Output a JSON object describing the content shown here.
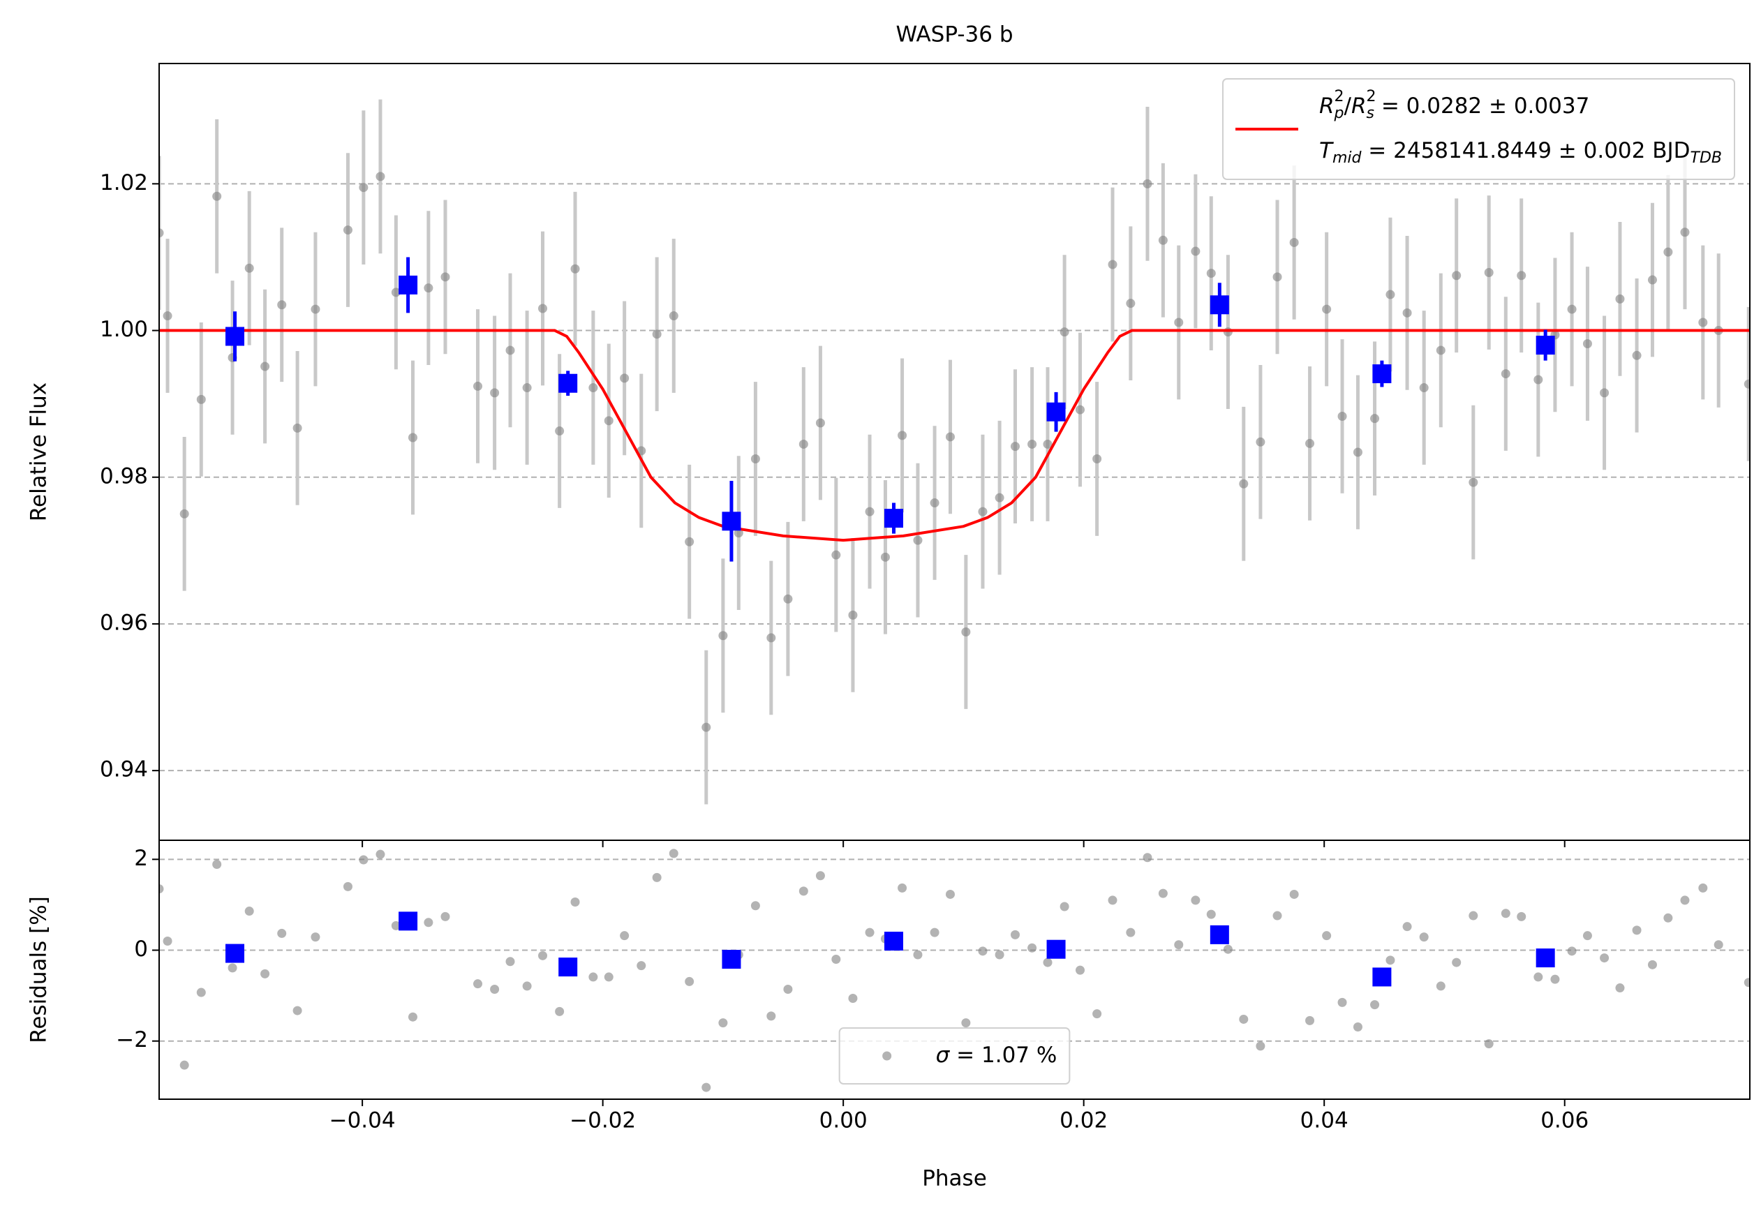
{
  "chart_data": [
    {
      "type": "scatter",
      "title": "WASP-36 b",
      "ylabel": "Relative Flux",
      "xlim": [
        -0.0569,
        0.0754
      ],
      "ylim": [
        0.9305,
        1.0364
      ],
      "yticks": [
        0.94,
        0.96,
        0.98,
        {
          "value": 1,
          "label": "1.00"
        },
        1.02
      ],
      "grid": "y",
      "legend": "upper right",
      "series": [
        {
          "style": "errorbar",
          "color": "#808080",
          "ecolor": "#c8c8c8",
          "yerr": 0.0105,
          "x": [
            -0.0569,
            -0.0562,
            -0.0548,
            -0.0534,
            -0.0521,
            -0.0508,
            -0.0494,
            -0.0481,
            -0.0467,
            -0.0454,
            -0.0439,
            -0.0412,
            -0.0399,
            -0.0385,
            -0.0372,
            -0.0358,
            -0.0345,
            -0.0331,
            -0.0304,
            -0.029,
            -0.0277,
            -0.0263,
            -0.025,
            -0.0236,
            -0.0223,
            -0.0208,
            -0.0195,
            -0.0182,
            -0.0168,
            -0.0155,
            -0.0141,
            -0.0128,
            -0.0114,
            -0.01,
            -0.0087,
            -0.0073,
            -0.006,
            -0.0046,
            -0.0033,
            -0.0019,
            -0.0006,
            0.0008,
            0.0022,
            0.0035,
            0.0049,
            0.0062,
            0.0076,
            0.0089,
            0.0102,
            0.0116,
            0.013,
            0.0143,
            0.0157,
            0.017,
            0.0184,
            0.0197,
            0.0211,
            0.0224,
            0.0239,
            0.0253,
            0.0266,
            0.0279,
            0.0293,
            0.0306,
            0.032,
            0.0333,
            0.0347,
            0.0361,
            0.0375,
            0.0388,
            0.0402,
            0.0415,
            0.0428,
            0.0442,
            0.0455,
            0.0469,
            0.0483,
            0.0497,
            0.051,
            0.0524,
            0.0537,
            0.0551,
            0.0564,
            0.0578,
            0.0592,
            0.0606,
            0.0619,
            0.0633,
            0.0646,
            0.066,
            0.0673,
            0.0686,
            0.07,
            0.0715,
            0.0728,
            0.0753
          ],
          "values": [
            1.0133,
            1.002,
            0.975,
            0.9906,
            1.0183,
            0.9963,
            1.0085,
            0.9951,
            1.0035,
            0.9867,
            1.0029,
            1.0137,
            1.0195,
            1.021,
            1.0052,
            0.9854,
            1.0058,
            1.0073,
            0.9924,
            0.9915,
            0.9973,
            0.9922,
            1.003,
            0.9863,
            1.0084,
            0.9922,
            0.9877,
            0.9935,
            0.9836,
            0.9995,
            1.002,
            0.9712,
            0.9459,
            0.9584,
            0.9724,
            0.9825,
            0.9581,
            0.9634,
            0.9845,
            0.9874,
            0.9694,
            0.9612,
            0.9753,
            0.9691,
            0.9857,
            0.9714,
            0.9765,
            0.9855,
            0.9589,
            0.9753,
            0.9772,
            0.9842,
            0.9845,
            0.9845,
            0.9998,
            0.9892,
            0.9825,
            1.009,
            1.0037,
            1.02,
            1.0123,
            1.0011,
            1.0108,
            1.0078,
            0.9998,
            0.9791,
            0.9848,
            1.0073,
            1.012,
            0.9846,
            1.0029,
            0.9883,
            0.9834,
            0.988,
            1.0049,
            1.0024,
            0.9922,
            0.9973,
            1.0075,
            0.9793,
            1.0079,
            0.9941,
            1.0075,
            0.9933,
            0.9994,
            1.0029,
            0.9982,
            0.9915,
            1.0043,
            0.9966,
            1.0069,
            1.0107,
            1.0134,
            1.0011,
            1.0,
            0.9927
          ]
        },
        {
          "style": "square",
          "color": "#0000ff",
          "x": [
            -0.0506,
            -0.0362,
            -0.0229,
            -0.0093,
            0.0042,
            0.0177,
            0.0313,
            0.0448,
            0.0584
          ],
          "values": [
            0.9992,
            1.0062,
            0.9928,
            0.974,
            0.9744,
            0.9889,
            1.0035,
            0.9941,
            0.998
          ],
          "errors": [
            0.0034,
            0.0038,
            0.0017,
            0.0055,
            0.0021,
            0.0027,
            0.003,
            0.0018,
            0.0021
          ]
        },
        {
          "style": "line",
          "color": "#ff0000",
          "name": [
            [
              {
                "text": "R",
                "italic": true
              },
              {
                "sup": "2",
                "sub": "p"
              },
              {
                "text": "/"
              },
              {
                "text": "R",
                "italic": true
              },
              {
                "sup": "2",
                "sub": "s"
              },
              {
                "text": " = 0.0282 ± 0.0037"
              }
            ],
            [
              {
                "text": "T",
                "italic": true
              },
              {
                "sub": "mid"
              },
              {
                "text": " = 2458141.8449 ± 0.002 BJD"
              },
              {
                "sub": "TDB"
              }
            ]
          ],
          "x": [
            -0.0569,
            -0.024,
            -0.023,
            -0.022,
            -0.02,
            -0.018,
            -0.016,
            -0.014,
            -0.012,
            -0.01,
            -0.005,
            0,
            0.005,
            0.01,
            0.012,
            0.014,
            0.016,
            0.018,
            0.02,
            0.022,
            0.023,
            0.024,
            0.0754
          ],
          "values": [
            1,
            1,
            0.9992,
            0.997,
            0.992,
            0.986,
            0.98,
            0.9765,
            0.9745,
            0.9733,
            0.972,
            0.9714,
            0.972,
            0.9733,
            0.9745,
            0.9765,
            0.98,
            0.986,
            0.992,
            0.997,
            0.9992,
            1,
            1
          ]
        }
      ]
    },
    {
      "type": "scatter",
      "xlabel": "Phase",
      "ylabel": "Residuals [%]",
      "xlim": [
        -0.0569,
        0.0754
      ],
      "ylim": [
        -3.28,
        2.42
      ],
      "xticks": [
        {
          "value": -0.04,
          "label": "−0.04"
        },
        {
          "value": -0.02,
          "label": "−0.02"
        },
        {
          "value": 0,
          "label": "0.00"
        },
        0.02,
        0.04,
        0.06
      ],
      "yticks": [
        {
          "value": -2,
          "label": "−2"
        },
        0,
        2
      ],
      "grid": "y",
      "legend": "lower center",
      "series": [
        {
          "style": "dot",
          "color": "#808080",
          "name": [
            [
              {
                "text": "σ",
                "italic": true
              },
              {
                "text": " = 1.07 %"
              }
            ]
          ],
          "x": [
            -0.0569,
            -0.0562,
            -0.0548,
            -0.0534,
            -0.0521,
            -0.0508,
            -0.0494,
            -0.0481,
            -0.0467,
            -0.0454,
            -0.0439,
            -0.0412,
            -0.0399,
            -0.0385,
            -0.0372,
            -0.0358,
            -0.0345,
            -0.0331,
            -0.0304,
            -0.029,
            -0.0277,
            -0.0263,
            -0.025,
            -0.0236,
            -0.0223,
            -0.0208,
            -0.0195,
            -0.0182,
            -0.0168,
            -0.0155,
            -0.0141,
            -0.0128,
            -0.0114,
            -0.01,
            -0.0087,
            -0.0073,
            -0.006,
            -0.0046,
            -0.0033,
            -0.0019,
            -0.0006,
            0.0008,
            0.0022,
            0.0035,
            0.0049,
            0.0062,
            0.0076,
            0.0089,
            0.0102,
            0.0116,
            0.013,
            0.0143,
            0.0157,
            0.017,
            0.0184,
            0.0197,
            0.0211,
            0.0224,
            0.0239,
            0.0253,
            0.0266,
            0.0279,
            0.0293,
            0.0306,
            0.032,
            0.0333,
            0.0347,
            0.0361,
            0.0375,
            0.0388,
            0.0402,
            0.0415,
            0.0428,
            0.0442,
            0.0455,
            0.0469,
            0.0483,
            0.0497,
            0.051,
            0.0524,
            0.0537,
            0.0551,
            0.0564,
            0.0578,
            0.0592,
            0.0606,
            0.0619,
            0.0633,
            0.0646,
            0.066,
            0.0673,
            0.0686,
            0.07,
            0.0715,
            0.0728,
            0.0753
          ],
          "values": [
            1.35,
            0.2,
            -2.53,
            -0.93,
            1.89,
            -0.39,
            0.86,
            -0.52,
            0.37,
            -1.33,
            0.29,
            1.4,
            1.99,
            2.11,
            0.54,
            -1.47,
            0.61,
            0.74,
            -0.74,
            -0.86,
            -0.25,
            -0.79,
            -0.12,
            -1.35,
            1.06,
            -0.59,
            -0.59,
            0.32,
            -0.34,
            1.6,
            2.13,
            -0.69,
            -3.02,
            -1.6,
            -0.1,
            0.98,
            -1.45,
            -0.86,
            1.3,
            1.64,
            -0.2,
            -1.06,
            0.39,
            0.25,
            1.37,
            -0.1,
            0.39,
            1.23,
            -1.6,
            -0.02,
            -0.1,
            0.34,
            0.05,
            -0.27,
            0.96,
            -0.44,
            -1.4,
            1.1,
            0.39,
            2.04,
            1.25,
            0.12,
            1.1,
            0.79,
            0.02,
            -1.52,
            -2.11,
            0.76,
            1.23,
            -1.55,
            0.32,
            -1.15,
            -1.69,
            -1.2,
            -0.22,
            0.52,
            0.29,
            -0.79,
            -0.27,
            0.76,
            -2.06,
            0.81,
            0.74,
            -0.59,
            -0.64,
            -0.02,
            0.32,
            -0.17,
            -0.83,
            0.44,
            -0.32,
            0.71,
            1.1,
            1.37,
            0.12,
            -0.71
          ]
        },
        {
          "style": "square",
          "color": "#0000ff",
          "x": [
            -0.0506,
            -0.0362,
            -0.0229,
            -0.0093,
            0.0042,
            0.0177,
            0.0313,
            0.0448,
            0.0584
          ],
          "values": [
            -0.07,
            0.64,
            -0.37,
            -0.2,
            0.2,
            0.02,
            0.34,
            -0.59,
            -0.17
          ]
        }
      ]
    }
  ]
}
